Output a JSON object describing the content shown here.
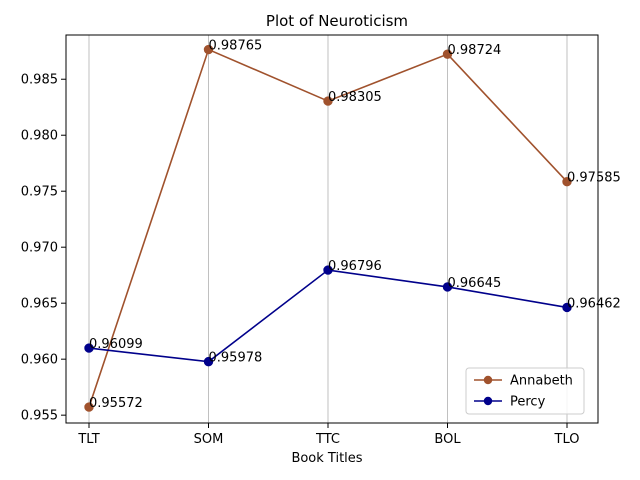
{
  "chart_data": {
    "type": "line",
    "title": "Plot of Neuroticism",
    "xlabel": "Book Titles",
    "ylabel": "",
    "categories": [
      "TLT",
      "SOM",
      "TTC",
      "BOL",
      "TLO"
    ],
    "ylim": [
      0.9543,
      0.98895
    ],
    "yticks": [
      0.955,
      0.96,
      0.965,
      0.97,
      0.975,
      0.98,
      0.985
    ],
    "ytick_labels": [
      "0.955",
      "0.960",
      "0.965",
      "0.970",
      "0.975",
      "0.980",
      "0.985"
    ],
    "grid": "vertical",
    "legend_position": "lower-right",
    "series": [
      {
        "name": "Annabeth",
        "color": "#a0522d",
        "values": [
          0.95572,
          0.98765,
          0.98305,
          0.98724,
          0.97585
        ],
        "labels": [
          "0.95572",
          "0.98765",
          "0.98305",
          "0.98724",
          "0.97585"
        ]
      },
      {
        "name": "Percy",
        "color": "#00008b",
        "values": [
          0.96099,
          0.95978,
          0.96796,
          0.96645,
          0.96462
        ],
        "labels": [
          "0.96099",
          "0.95978",
          "0.96796",
          "0.96645",
          "0.96462"
        ]
      }
    ]
  }
}
